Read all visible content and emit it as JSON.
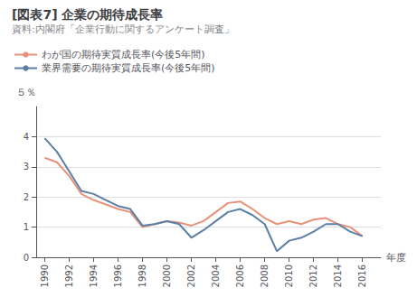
{
  "chart_data": {
    "type": "line",
    "title": "[図表7] 企業の期待成長率",
    "subtitle": "資料:内閣府「企業行動に関するアンケート調査」",
    "x_label": "年度",
    "y_label": "５％",
    "x": [
      1990,
      1991,
      1992,
      1993,
      1994,
      1995,
      1996,
      1997,
      1998,
      1999,
      2000,
      2001,
      2002,
      2003,
      2004,
      2005,
      2006,
      2007,
      2008,
      2009,
      2010,
      2011,
      2012,
      2013,
      2014,
      2015,
      2016
    ],
    "series": [
      {
        "name": "わが国の期待実質成長率(今後5年間)",
        "color": "#E8927C",
        "values": [
          3.3,
          3.15,
          2.7,
          2.1,
          1.9,
          1.75,
          1.6,
          1.5,
          1.0,
          1.1,
          1.2,
          1.15,
          1.05,
          1.2,
          1.5,
          1.8,
          1.85,
          1.6,
          1.3,
          1.1,
          1.2,
          1.1,
          1.25,
          1.3,
          1.1,
          1.0,
          0.7
        ]
      },
      {
        "name": "業界需要の期待実質成長率(今後5年間)",
        "color": "#5B7FA6",
        "values": [
          3.95,
          3.5,
          2.85,
          2.2,
          2.1,
          1.9,
          1.7,
          1.6,
          1.05,
          1.1,
          1.2,
          1.1,
          0.65,
          0.9,
          1.2,
          1.5,
          1.6,
          1.4,
          1.1,
          0.2,
          0.55,
          0.65,
          0.85,
          1.1,
          1.1,
          0.85,
          0.7
        ]
      }
    ],
    "xlim": [
      1989.3,
      2017.5
    ],
    "xticks": [
      1990,
      1992,
      1994,
      1996,
      1998,
      2000,
      2002,
      2004,
      2006,
      2008,
      2010,
      2012,
      2014,
      2016
    ],
    "ylim": [
      0,
      5
    ],
    "yticks": [
      0,
      1,
      2,
      3,
      4
    ],
    "grid": true,
    "legend": "top left"
  }
}
